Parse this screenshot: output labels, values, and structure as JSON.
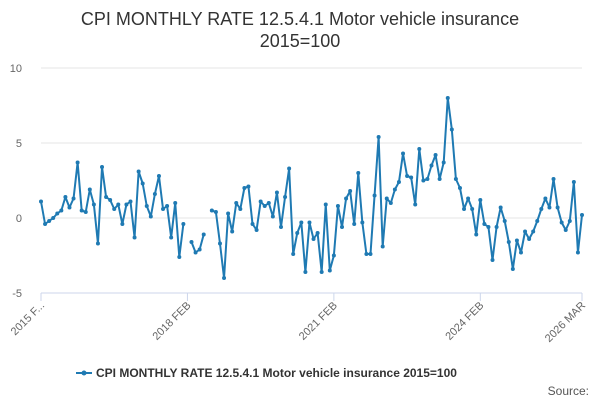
{
  "chart_data": {
    "type": "line",
    "title_lines": [
      "CPI MONTHLY RATE 12.5.4.1 Motor vehicle insurance",
      "2015=100"
    ],
    "xlabel": "",
    "ylabel": "",
    "ylim": [
      -5,
      10
    ],
    "yticks": [
      {
        "value": 10,
        "label": "10"
      },
      {
        "value": 5,
        "label": "5"
      },
      {
        "value": 0,
        "label": "0"
      },
      {
        "value": -5,
        "label": "-5"
      }
    ],
    "xticks": [
      {
        "index": 0,
        "label": "2015 F..."
      },
      {
        "index": 36,
        "label": "2018 FEB"
      },
      {
        "index": 72,
        "label": "2021 FEB"
      },
      {
        "index": 108,
        "label": "2024 FEB"
      },
      {
        "index": 133,
        "label": "2026 MAR"
      }
    ],
    "grid": true,
    "legend": "bottom-center",
    "series": [
      {
        "name": "CPI MONTHLY RATE 12.5.4.1 Motor vehicle insurance 2015=100",
        "color": "#1f7ab3",
        "values": [
          1.1,
          -0.4,
          -0.2,
          0.0,
          0.3,
          0.5,
          1.4,
          0.7,
          1.3,
          3.7,
          0.5,
          0.4,
          1.9,
          0.9,
          -1.7,
          3.4,
          1.4,
          1.2,
          0.6,
          0.9,
          -0.4,
          0.9,
          1.1,
          -1.3,
          3.1,
          2.3,
          0.8,
          0.1,
          1.6,
          2.8,
          0.6,
          0.8,
          -1.3,
          1.0,
          -2.6,
          -0.4,
          null,
          -1.6,
          -2.3,
          -2.1,
          -1.1,
          null,
          0.5,
          0.4,
          -1.7,
          -4.0,
          0.3,
          -0.9,
          1.0,
          0.6,
          2.0,
          2.1,
          -0.4,
          -0.8,
          1.1,
          0.8,
          1.0,
          0.1,
          1.7,
          -0.6,
          1.4,
          3.3,
          -2.4,
          -1.0,
          -0.3,
          -3.6,
          -0.3,
          -1.4,
          -1.0,
          -3.6,
          0.9,
          -3.5,
          -2.5,
          0.8,
          -0.6,
          1.3,
          1.8,
          -0.4,
          3.0,
          -0.3,
          -2.4,
          -2.4,
          1.5,
          5.4,
          -1.9,
          1.3,
          1.0,
          1.9,
          2.4,
          4.3,
          2.8,
          2.7,
          0.9,
          4.6,
          2.5,
          2.6,
          3.5,
          4.2,
          2.6,
          3.7,
          8.0,
          5.9,
          2.6,
          2.0,
          0.6,
          1.3,
          0.6,
          -1.1,
          1.2,
          -0.4,
          -0.6,
          -2.8,
          -0.6,
          0.7,
          -0.2,
          -1.6,
          -3.4,
          -1.5,
          -2.3,
          -0.9,
          -1.4,
          -0.9,
          -0.2,
          0.6,
          1.3,
          0.7,
          2.6,
          0.7,
          -0.3,
          -0.8,
          -0.2,
          2.4,
          -2.3,
          0.2
        ]
      }
    ],
    "credit": "Source:"
  }
}
